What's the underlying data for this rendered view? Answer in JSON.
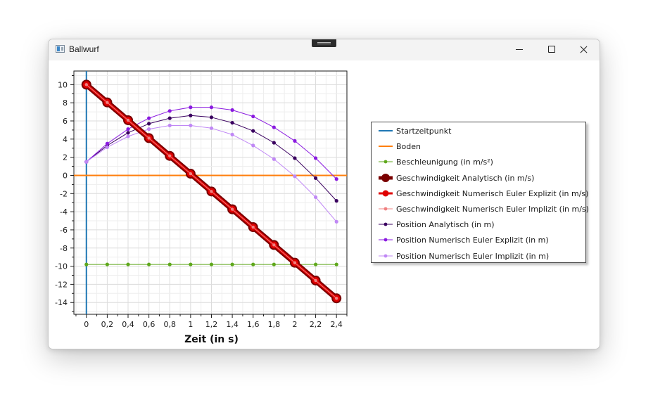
{
  "window": {
    "title": "Ballwurf"
  },
  "chart_data": {
    "type": "line",
    "xlabel": "Zeit (in s)",
    "ylabel": "",
    "xlim": [
      -0.12,
      2.5
    ],
    "ylim": [
      -15.3,
      11.5
    ],
    "x_ticks": [
      "0",
      "0,2",
      "0,4",
      "0,6",
      "0,8",
      "1",
      "1,2",
      "1,4",
      "1,6",
      "1,8",
      "2",
      "2,2",
      "2,4"
    ],
    "y_ticks": [
      "10",
      "8",
      "6",
      "4",
      "2",
      "0",
      "-2",
      "-4",
      "-6",
      "-8",
      "-10",
      "-12",
      "-14"
    ],
    "grid": true,
    "legend_position": "right",
    "x": [
      0,
      0.2,
      0.4,
      0.6,
      0.8,
      1.0,
      1.2,
      1.4,
      1.6,
      1.8,
      2.0,
      2.2,
      2.4
    ],
    "series": [
      {
        "name": "Startzeitpunkt",
        "kind": "vline",
        "x_value": 0,
        "color": "#1f77b4",
        "marker": "none"
      },
      {
        "name": "Boden",
        "kind": "hline",
        "y_value": 0,
        "color": "#ff7f0e",
        "marker": "none"
      },
      {
        "name": "Beschleunigung (in m/s²)",
        "kind": "line",
        "color": "#5fa81c",
        "marker": "small",
        "values": [
          -9.81,
          -9.81,
          -9.81,
          -9.81,
          -9.81,
          -9.81,
          -9.81,
          -9.81,
          -9.81,
          -9.81,
          -9.81,
          -9.81,
          -9.81
        ]
      },
      {
        "name": "Geschwindigkeit Analytisch (in m/s)",
        "kind": "line",
        "color": "#7a0000",
        "marker": "large",
        "values": [
          10.0,
          8.04,
          6.08,
          4.11,
          2.15,
          0.19,
          -1.77,
          -3.73,
          -5.7,
          -7.66,
          -9.62,
          -11.58,
          -13.54
        ]
      },
      {
        "name": "Geschwindigkeit Numerisch Euler Explizit (in m/s)",
        "kind": "line",
        "color": "#e00000",
        "marker": "large",
        "values": [
          10.0,
          8.04,
          6.08,
          4.11,
          2.15,
          0.19,
          -1.77,
          -3.73,
          -5.7,
          -7.66,
          -9.62,
          -11.58,
          -13.54
        ]
      },
      {
        "name": "Geschwindigkeit Numerisch Euler Implizit (in m/s)",
        "kind": "line",
        "color": "#f08080",
        "marker": "small",
        "values": [
          10.0,
          8.04,
          6.08,
          4.11,
          2.15,
          0.19,
          -1.77,
          -3.73,
          -5.7,
          -7.66,
          -9.62,
          -11.58,
          -13.54
        ]
      },
      {
        "name": "Position Analytisch (in m)",
        "kind": "line",
        "color": "#3a0060",
        "marker": "small",
        "values": [
          1.5,
          3.3,
          4.7,
          5.7,
          6.3,
          6.6,
          6.4,
          5.8,
          4.9,
          3.6,
          1.9,
          -0.3,
          -2.8
        ]
      },
      {
        "name": "Position Numerisch Euler Explizit (in m)",
        "kind": "line",
        "color": "#8a1ae0",
        "marker": "small",
        "values": [
          1.5,
          3.5,
          5.1,
          6.3,
          7.1,
          7.5,
          7.5,
          7.2,
          6.5,
          5.3,
          3.8,
          1.9,
          -0.4
        ]
      },
      {
        "name": "Position Numerisch Euler Implizit (in m)",
        "kind": "line",
        "color": "#c088f5",
        "marker": "small",
        "values": [
          1.5,
          3.1,
          4.3,
          5.1,
          5.5,
          5.5,
          5.2,
          4.5,
          3.3,
          1.8,
          -0.1,
          -2.4,
          -5.1
        ]
      }
    ]
  }
}
